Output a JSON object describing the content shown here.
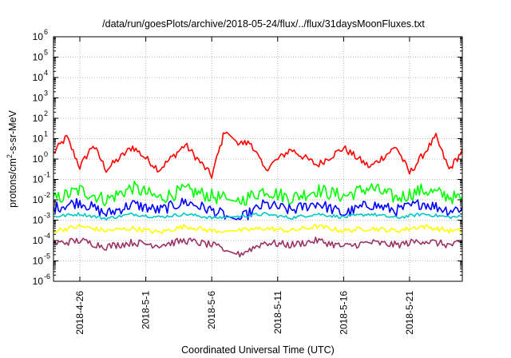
{
  "chart_data": {
    "type": "line",
    "title": "/data/run/goesPlots/archive/2018-05-24/flux/../flux/31daysMoonFluxes.txt",
    "xlabel": "Coordinated Universal Time (UTC)",
    "ylabel": {
      "prefix": "protons/cm",
      "superscript": "2",
      "suffix": "-s-sr-MeV"
    },
    "y_scale": "log",
    "ylim": [
      1e-06,
      1000000.0
    ],
    "y_ticks": [
      {
        "value": 1e-06,
        "base": "10",
        "exp": "-6"
      },
      {
        "value": 1e-05,
        "base": "10",
        "exp": "-5"
      },
      {
        "value": 0.0001,
        "base": "10",
        "exp": "-4"
      },
      {
        "value": 0.001,
        "base": "10",
        "exp": "-3"
      },
      {
        "value": 0.01,
        "base": "10",
        "exp": "-2"
      },
      {
        "value": 0.1,
        "base": "10",
        "exp": "-1"
      },
      {
        "value": 1,
        "base": "10",
        "exp": "0"
      },
      {
        "value": 10,
        "base": "10",
        "exp": "1"
      },
      {
        "value": 100,
        "base": "10",
        "exp": "2"
      },
      {
        "value": 1000,
        "base": "10",
        "exp": "3"
      },
      {
        "value": 10000,
        "base": "10",
        "exp": "4"
      },
      {
        "value": 100000,
        "base": "10",
        "exp": "5"
      },
      {
        "value": 1000000,
        "base": "10",
        "exp": "6"
      }
    ],
    "xlim": [
      "2018-04-24",
      "2018-05-25"
    ],
    "x_ticks": [
      "2018-4-26",
      "2018-5-1",
      "2018-5-6",
      "2018-5-11",
      "2018-5-16",
      "2018-5-21"
    ],
    "grid": true,
    "data_gap": [
      "2018-05-07",
      "2018-05-08"
    ],
    "series": [
      {
        "color": "#ff0000",
        "points": [
          [
            "2018-04-24",
            2.0
          ],
          [
            "2018-04-25",
            12.0
          ],
          [
            "2018-04-26",
            0.4
          ],
          [
            "2018-04-27",
            5.0
          ],
          [
            "2018-04-28",
            0.3
          ],
          [
            "2018-04-30",
            4.0
          ],
          [
            "2018-05-02",
            0.3
          ],
          [
            "2018-05-04",
            5.0
          ],
          [
            "2018-05-06",
            0.15
          ],
          [
            "2018-05-07",
            25.0
          ],
          [
            "2018-05-08",
            6.0
          ],
          [
            "2018-05-09",
            6.0
          ],
          [
            "2018-05-10",
            0.3
          ],
          [
            "2018-05-12",
            3.0
          ],
          [
            "2018-05-14",
            0.5
          ],
          [
            "2018-05-16",
            3.5
          ],
          [
            "2018-05-18",
            0.4
          ],
          [
            "2018-05-20",
            4.0
          ],
          [
            "2018-05-21",
            0.2
          ],
          [
            "2018-05-23",
            12.0
          ],
          [
            "2018-05-24",
            0.3
          ],
          [
            "2018-05-25",
            2.5
          ]
        ]
      },
      {
        "color": "#00ff00",
        "points": [
          [
            "2018-04-24",
            0.01
          ],
          [
            "2018-04-26",
            0.03
          ],
          [
            "2018-04-28",
            0.01
          ],
          [
            "2018-04-30",
            0.04
          ],
          [
            "2018-05-02",
            0.012
          ],
          [
            "2018-05-04",
            0.03
          ],
          [
            "2018-05-06",
            0.015
          ],
          [
            "2018-05-08",
            0.008
          ],
          [
            "2018-05-10",
            0.03
          ],
          [
            "2018-05-12",
            0.012
          ],
          [
            "2018-05-14",
            0.03
          ],
          [
            "2018-05-16",
            0.015
          ],
          [
            "2018-05-18",
            0.04
          ],
          [
            "2018-05-20",
            0.012
          ],
          [
            "2018-05-22",
            0.03
          ],
          [
            "2018-05-24",
            0.015
          ],
          [
            "2018-05-25",
            0.01
          ]
        ]
      },
      {
        "color": "#0000ff",
        "points": [
          [
            "2018-04-24",
            0.004
          ],
          [
            "2018-04-26",
            0.008
          ],
          [
            "2018-04-28",
            0.002
          ],
          [
            "2018-04-30",
            0.006
          ],
          [
            "2018-05-02",
            0.003
          ],
          [
            "2018-05-04",
            0.008
          ],
          [
            "2018-05-06",
            0.003
          ],
          [
            "2018-05-08",
            0.001
          ],
          [
            "2018-05-10",
            0.006
          ],
          [
            "2018-05-12",
            0.003
          ],
          [
            "2018-05-14",
            0.007
          ],
          [
            "2018-05-16",
            0.002
          ],
          [
            "2018-05-18",
            0.006
          ],
          [
            "2018-05-20",
            0.003
          ],
          [
            "2018-05-22",
            0.007
          ],
          [
            "2018-05-24",
            0.003
          ],
          [
            "2018-05-25",
            0.004
          ]
        ]
      },
      {
        "color": "#00c8c8",
        "points": [
          [
            "2018-04-24",
            0.0015
          ],
          [
            "2018-04-26",
            0.002
          ],
          [
            "2018-04-28",
            0.0012
          ],
          [
            "2018-04-30",
            0.002
          ],
          [
            "2018-05-02",
            0.0014
          ],
          [
            "2018-05-04",
            0.002
          ],
          [
            "2018-05-06",
            0.0013
          ],
          [
            "2018-05-08",
            0.0015
          ],
          [
            "2018-05-10",
            0.002
          ],
          [
            "2018-05-12",
            0.0013
          ],
          [
            "2018-05-14",
            0.002
          ],
          [
            "2018-05-16",
            0.0014
          ],
          [
            "2018-05-18",
            0.002
          ],
          [
            "2018-05-20",
            0.0013
          ],
          [
            "2018-05-22",
            0.002
          ],
          [
            "2018-05-24",
            0.0014
          ],
          [
            "2018-05-25",
            0.0015
          ]
        ]
      },
      {
        "color": "#ffff00",
        "points": [
          [
            "2018-04-24",
            0.0003
          ],
          [
            "2018-04-26",
            0.0005
          ],
          [
            "2018-04-28",
            0.0003
          ],
          [
            "2018-04-30",
            0.0004
          ],
          [
            "2018-05-02",
            0.00025
          ],
          [
            "2018-05-04",
            0.0005
          ],
          [
            "2018-05-06",
            0.0003
          ],
          [
            "2018-05-08",
            0.0003
          ],
          [
            "2018-05-10",
            0.0004
          ],
          [
            "2018-05-12",
            0.0003
          ],
          [
            "2018-05-14",
            0.0005
          ],
          [
            "2018-05-16",
            0.0003
          ],
          [
            "2018-05-18",
            0.0004
          ],
          [
            "2018-05-20",
            0.0003
          ],
          [
            "2018-05-22",
            0.0005
          ],
          [
            "2018-05-24",
            0.0003
          ],
          [
            "2018-05-25",
            0.0003
          ]
        ]
      },
      {
        "color": "#993366",
        "points": [
          [
            "2018-04-24",
            7e-05
          ],
          [
            "2018-04-26",
            0.0001
          ],
          [
            "2018-04-28",
            5e-05
          ],
          [
            "2018-04-30",
            8e-05
          ],
          [
            "2018-05-02",
            6e-05
          ],
          [
            "2018-05-04",
            0.0001
          ],
          [
            "2018-05-06",
            6e-05
          ],
          [
            "2018-05-08",
            2e-05
          ],
          [
            "2018-05-10",
            8e-05
          ],
          [
            "2018-05-12",
            6e-05
          ],
          [
            "2018-05-14",
            0.0001
          ],
          [
            "2018-05-16",
            5e-05
          ],
          [
            "2018-05-18",
            8e-05
          ],
          [
            "2018-05-20",
            6e-05
          ],
          [
            "2018-05-22",
            0.0001
          ],
          [
            "2018-05-24",
            6e-05
          ],
          [
            "2018-05-25",
            7e-05
          ]
        ]
      }
    ]
  }
}
